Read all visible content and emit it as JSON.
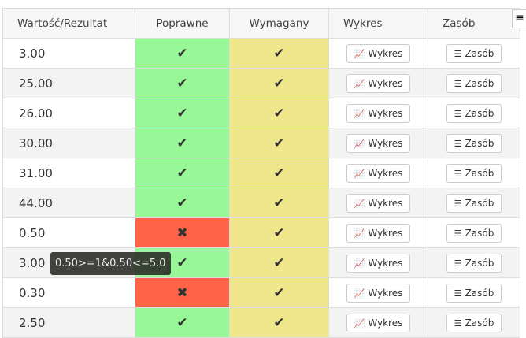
{
  "header": {
    "value": "Wartość/Rezultat",
    "correct": "Poprawne",
    "required": "Wymagany",
    "chart": "Wykres",
    "resource": "Zasób"
  },
  "icons": {
    "check": "✔",
    "cross": "✖",
    "menu": "≡",
    "chart": "chart-area-icon",
    "list": "list-icon"
  },
  "buttons": {
    "chart": "Wykres",
    "resource": "Zasób"
  },
  "rows": [
    {
      "value": "3.00",
      "correct": true
    },
    {
      "value": "25.00",
      "correct": true
    },
    {
      "value": "26.00",
      "correct": true
    },
    {
      "value": "30.00",
      "correct": true
    },
    {
      "value": "31.00",
      "correct": true
    },
    {
      "value": "44.00",
      "correct": true
    },
    {
      "value": "0.50",
      "correct": false
    },
    {
      "value": "3.00",
      "correct": true
    },
    {
      "value": "0.30",
      "correct": false
    },
    {
      "value": "2.50",
      "correct": true
    }
  ],
  "tooltip": "0.50>=1&0.50<=5.0",
  "colors": {
    "correct": "#98f898",
    "incorrect": "#ff6347",
    "required": "#f0e68c"
  }
}
